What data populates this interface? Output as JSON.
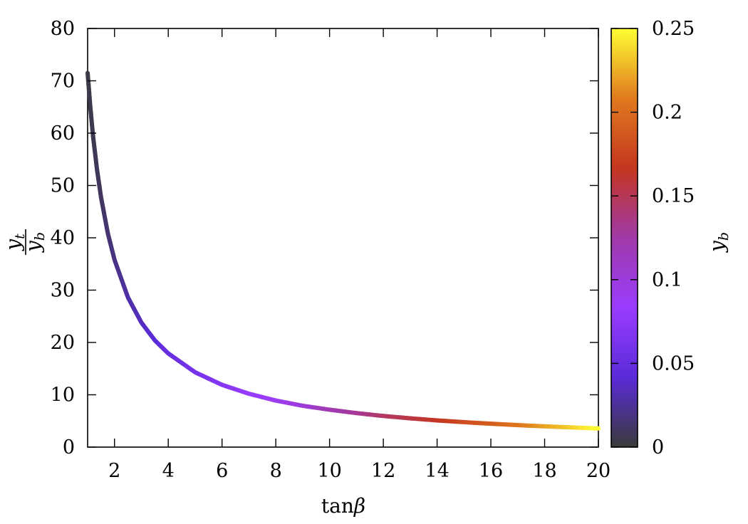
{
  "chart_data": {
    "type": "line",
    "title": "",
    "xlabel_fn": "tan",
    "xlabel_sym": "β",
    "ylabel_num": "y",
    "ylabel_num_sub": "t",
    "ylabel_den": "y",
    "ylabel_den_sub": "b",
    "xlim": [
      1,
      20
    ],
    "ylim": [
      0,
      80
    ],
    "xticks": [
      2,
      4,
      6,
      8,
      10,
      12,
      14,
      16,
      18,
      20
    ],
    "yticks": [
      0,
      10,
      20,
      30,
      40,
      50,
      60,
      70,
      80
    ],
    "grid": false,
    "colorbar": {
      "label": "y",
      "label_sub": "b",
      "range": [
        0,
        0.25
      ],
      "ticks": [
        "0",
        "0.05",
        "0.1",
        "0.15",
        "0.2",
        "0.25"
      ],
      "colormap": [
        "#3a3a3a",
        "#5a2bd8",
        "#9a3cff",
        "#a03aa8",
        "#c4361f",
        "#e07a1e",
        "#ffff33"
      ]
    },
    "series": [
      {
        "x": [
          1.0,
          1.1,
          1.2,
          1.35,
          1.5,
          1.75,
          2.0,
          2.5,
          3.0,
          3.5,
          4.0,
          5.0,
          6.0,
          7.0,
          8.0,
          9.0,
          10.0,
          11.0,
          12.0,
          13.0,
          14.0,
          15.0,
          16.0,
          17.0,
          18.0,
          19.0,
          20.0
        ],
        "y": [
          71.5,
          65.0,
          59.5,
          53.0,
          47.7,
          40.9,
          35.8,
          28.6,
          23.8,
          20.4,
          17.9,
          14.3,
          11.9,
          10.2,
          8.9,
          7.9,
          7.15,
          6.5,
          5.95,
          5.5,
          5.1,
          4.77,
          4.47,
          4.2,
          3.97,
          3.76,
          3.57
        ],
        "yb": [
          0.0035,
          0.0045,
          0.006,
          0.008,
          0.01,
          0.014,
          0.019,
          0.028,
          0.035,
          0.042,
          0.05,
          0.06,
          0.07,
          0.08,
          0.09,
          0.1,
          0.12,
          0.13,
          0.145,
          0.155,
          0.165,
          0.18,
          0.19,
          0.205,
          0.22,
          0.235,
          0.25
        ]
      }
    ]
  }
}
